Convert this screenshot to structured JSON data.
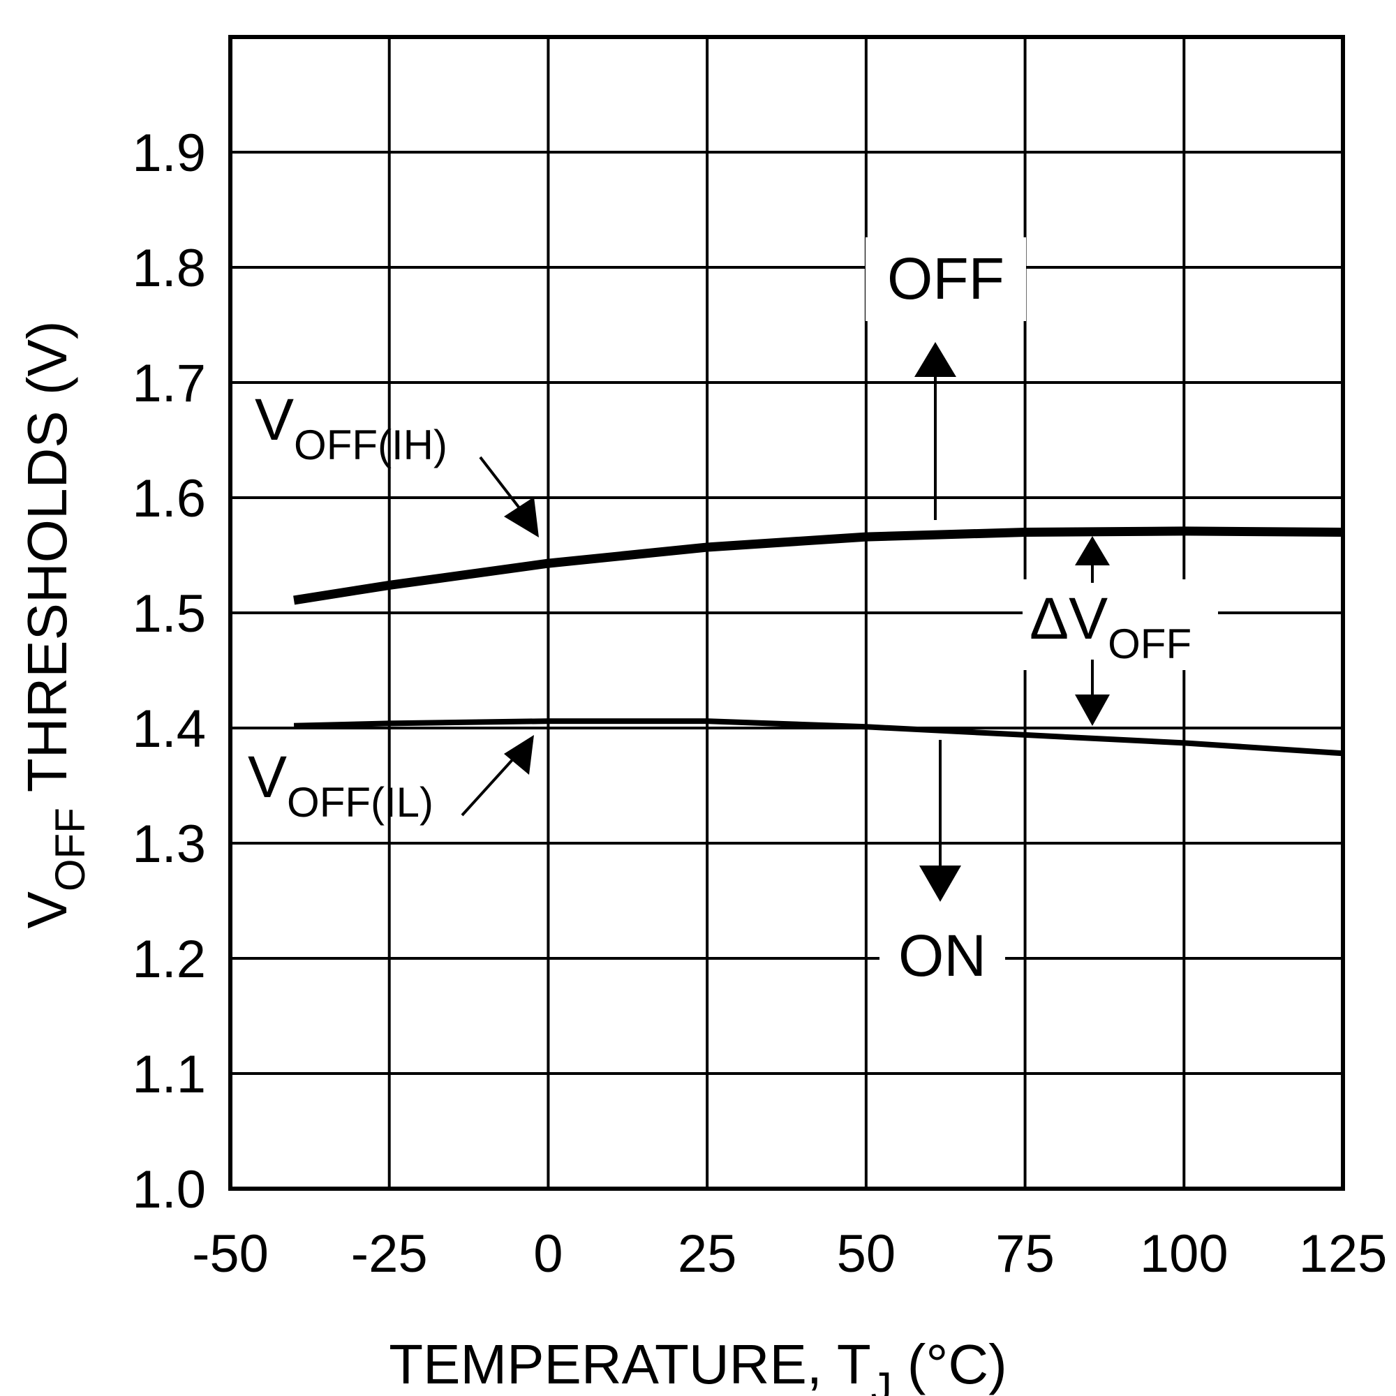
{
  "chart_data": {
    "type": "line",
    "title": "",
    "xlabel": {
      "main": "TEMPERATURE, T",
      "sub": "J",
      "unit": "(°C)"
    },
    "ylabel": {
      "main": "V",
      "sub": "OFF",
      "rest": "THRESHOLDS (V)"
    },
    "xlim": [
      -50,
      125
    ],
    "ylim": [
      1.0,
      2.0
    ],
    "x_ticks": [
      -50,
      -25,
      0,
      25,
      50,
      75,
      100,
      125
    ],
    "y_ticks": [
      1.0,
      1.1,
      1.2,
      1.3,
      1.4,
      1.5,
      1.6,
      1.7,
      1.8,
      1.9
    ],
    "y_tick_labels": [
      "1.0",
      "1.1",
      "1.2",
      "1.3",
      "1.4",
      "1.5",
      "1.6",
      "1.7",
      "1.8",
      "1.9"
    ],
    "grid": true,
    "series": [
      {
        "name": "V_OFF(IH)",
        "label_main": "V",
        "label_sub": "OFF(IH)",
        "x": [
          -40,
          -25,
          0,
          25,
          50,
          75,
          100,
          125
        ],
        "y": [
          1.511,
          1.524,
          1.543,
          1.557,
          1.566,
          1.57,
          1.571,
          1.57
        ]
      },
      {
        "name": "V_OFF(IL)",
        "label_main": "V",
        "label_sub": "OFF(IL)",
        "x": [
          -40,
          -25,
          0,
          25,
          50,
          75,
          100,
          125
        ],
        "y": [
          1.402,
          1.404,
          1.406,
          1.406,
          1.401,
          1.394,
          1.387,
          1.378
        ]
      }
    ],
    "annotations": {
      "off_label": "OFF",
      "on_label": "ON",
      "delta_main": "ΔV",
      "delta_sub": "OFF"
    }
  }
}
